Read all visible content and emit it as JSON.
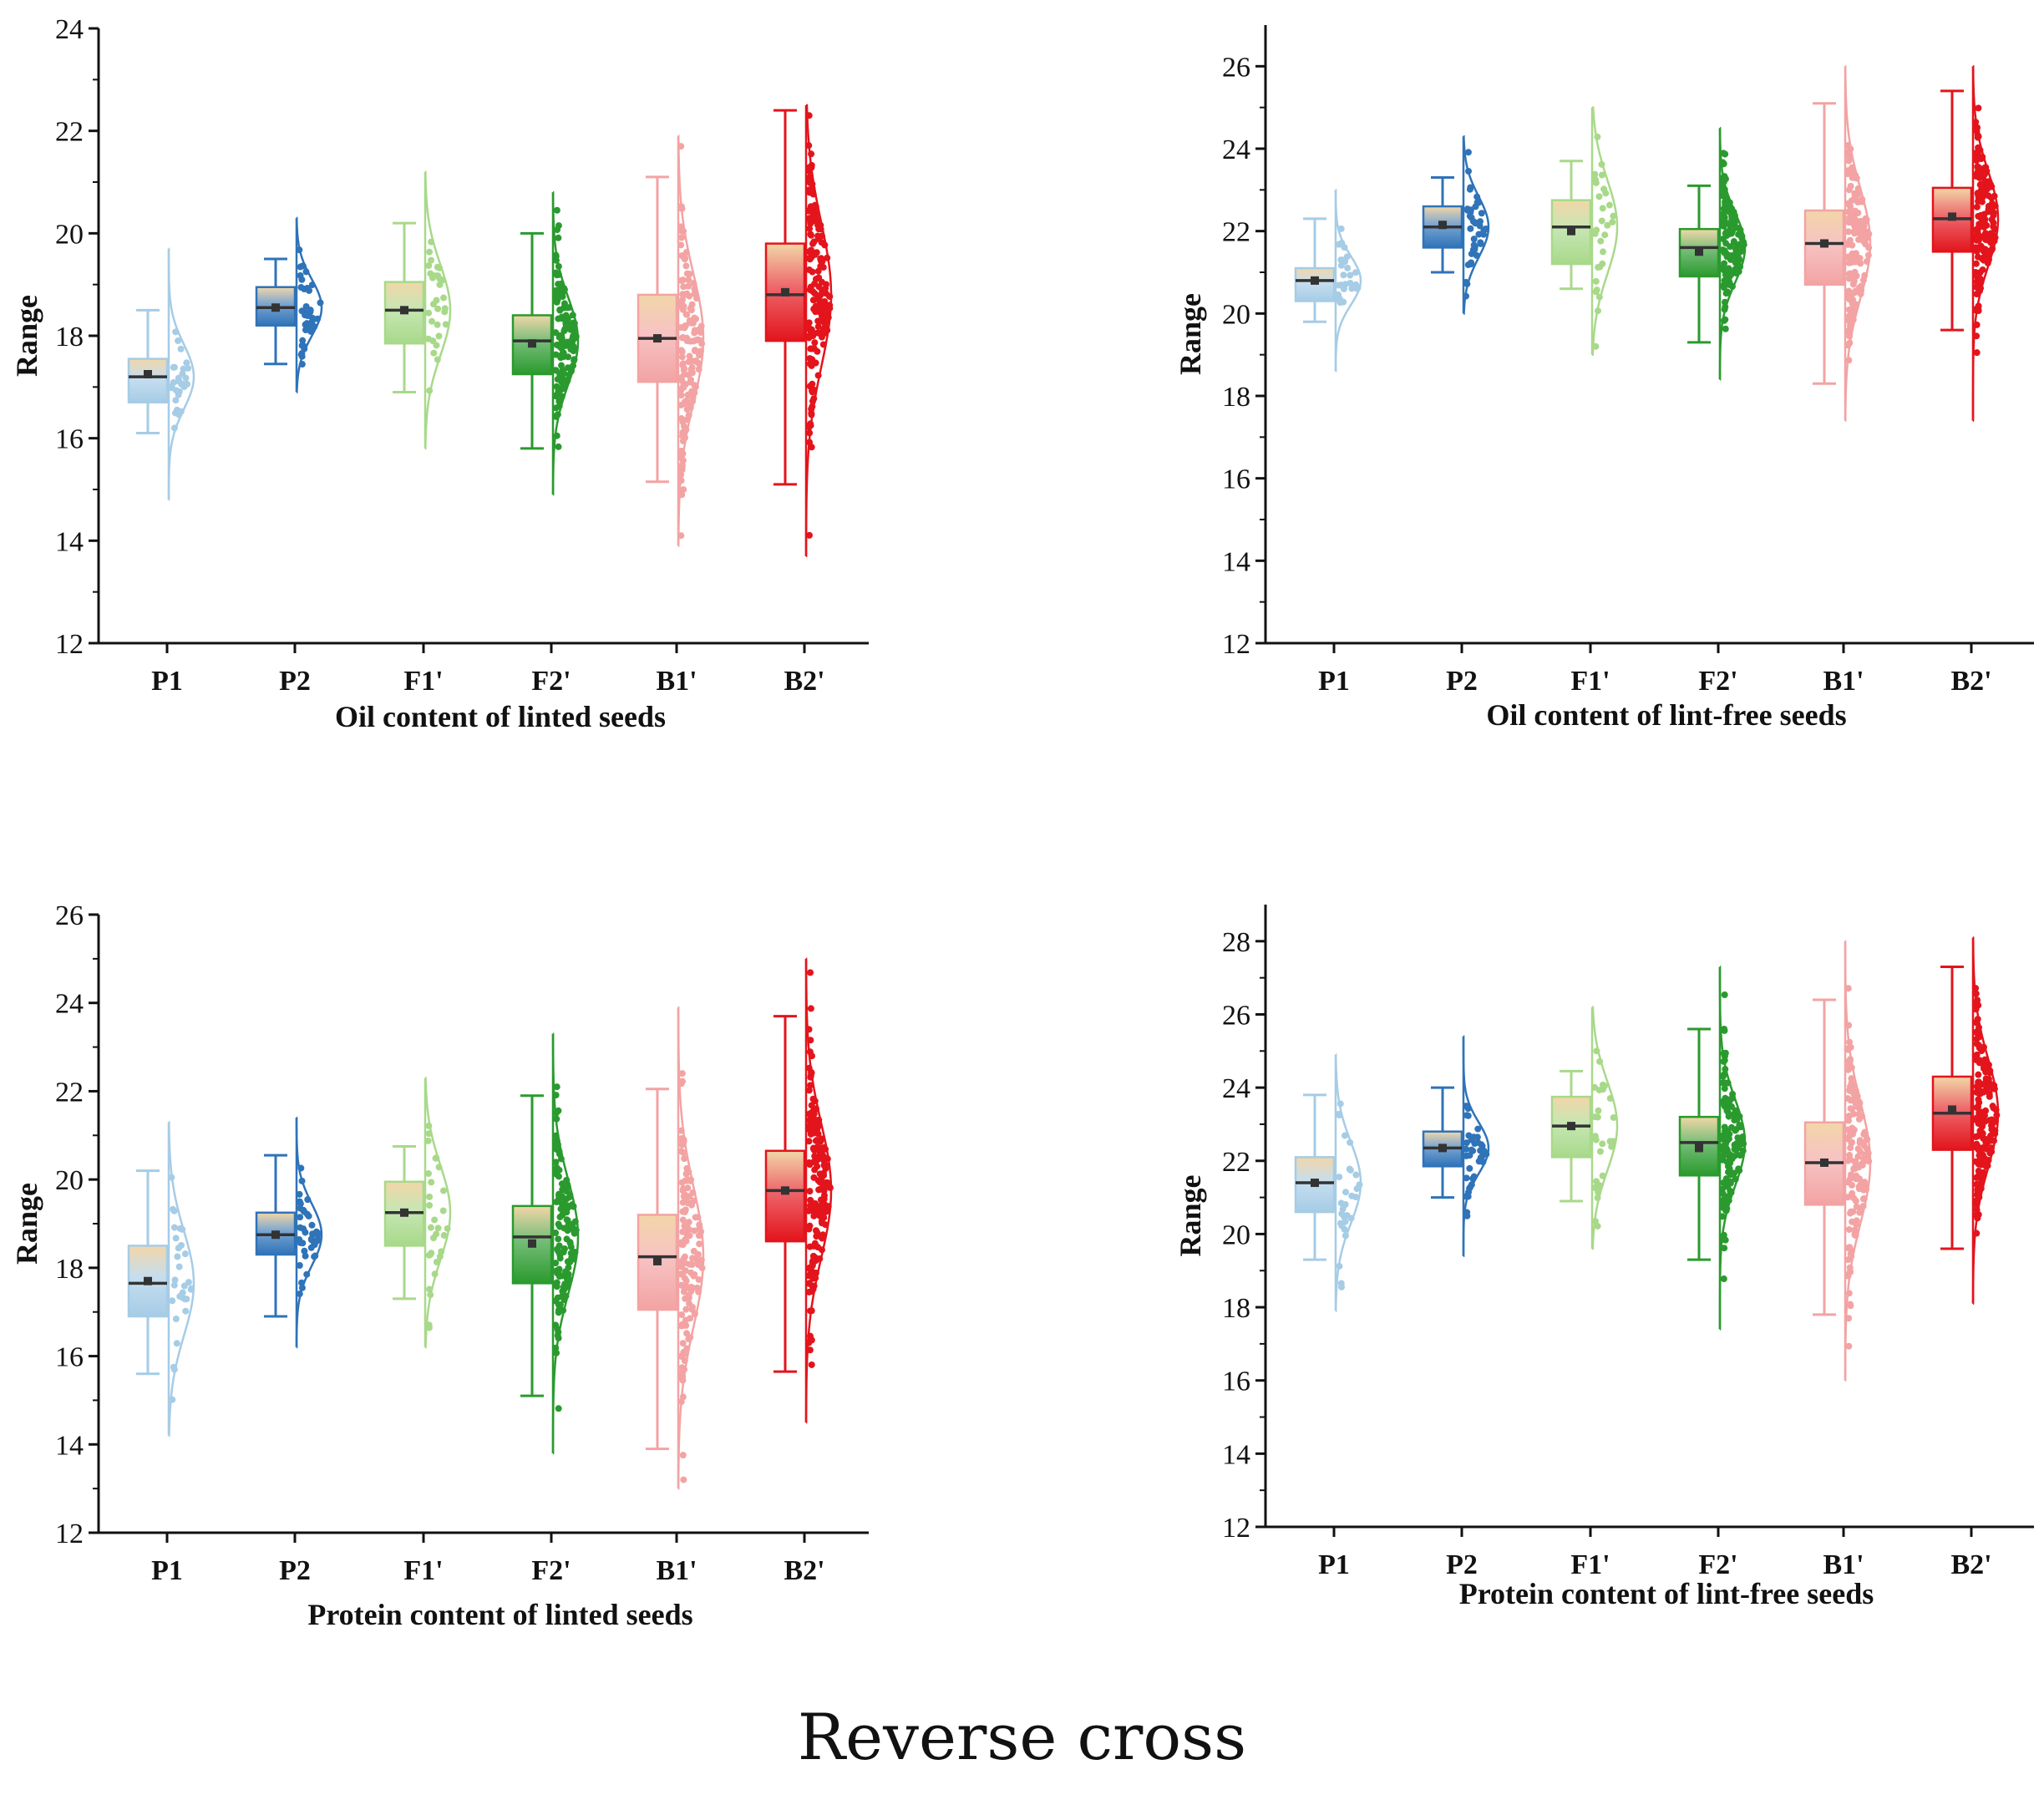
{
  "figure_caption": "Reverse cross",
  "colors": {
    "P1": "#a6cce6",
    "P2": "#2f73b8",
    "F1'": "#a8d98a",
    "F2'": "#2a9a2e",
    "B1'": "#f3a3a3",
    "B2'": "#e3141c",
    "box_top_tint": "#f2d6a8"
  },
  "chart_data": [
    {
      "type": "box-violin",
      "title": "",
      "xlabel": "Oil content of linted seeds",
      "ylabel": "Range",
      "ylim": [
        12,
        24
      ],
      "yticks": [
        12,
        14,
        16,
        18,
        20,
        22,
        24
      ],
      "categories": [
        "P1",
        "P2",
        "F1'",
        "F2'",
        "B1'",
        "B2'"
      ],
      "groups": [
        {
          "name": "P1",
          "min": 16.1,
          "q1": 16.7,
          "median": 17.2,
          "q3": 17.55,
          "max": 18.5,
          "mean": 17.25,
          "dist_low": 14.8,
          "dist_high": 19.7,
          "n": 30
        },
        {
          "name": "P2",
          "min": 17.45,
          "q1": 18.2,
          "median": 18.55,
          "q3": 18.95,
          "max": 19.5,
          "mean": 18.55,
          "dist_low": 16.9,
          "dist_high": 20.3,
          "n": 40
        },
        {
          "name": "F1'",
          "min": 16.9,
          "q1": 17.85,
          "median": 18.5,
          "q3": 19.05,
          "max": 20.2,
          "mean": 18.5,
          "dist_low": 15.8,
          "dist_high": 21.2,
          "n": 30
        },
        {
          "name": "F2'",
          "min": 15.8,
          "q1": 17.25,
          "median": 17.9,
          "q3": 18.4,
          "max": 20.0,
          "mean": 17.85,
          "dist_low": 14.9,
          "dist_high": 20.8,
          "n": 140
        },
        {
          "name": "B1'",
          "min": 15.15,
          "q1": 17.1,
          "median": 17.95,
          "q3": 18.8,
          "max": 21.1,
          "mean": 17.95,
          "dist_low": 13.9,
          "dist_high": 21.9,
          "n": 140
        },
        {
          "name": "B2'",
          "min": 15.1,
          "q1": 17.9,
          "median": 18.8,
          "q3": 19.8,
          "max": 22.4,
          "mean": 18.85,
          "dist_low": 13.7,
          "dist_high": 22.5,
          "n": 170
        }
      ]
    },
    {
      "type": "box-violin",
      "title": "",
      "xlabel": "Oil content of lint-free seeds",
      "ylabel": "Range",
      "ylim": [
        12,
        27
      ],
      "yticks": [
        12,
        14,
        16,
        18,
        20,
        22,
        24,
        26
      ],
      "categories": [
        "P1",
        "P2",
        "F1'",
        "F2'",
        "B1'",
        "B2'"
      ],
      "groups": [
        {
          "name": "P1",
          "min": 19.8,
          "q1": 20.3,
          "median": 20.8,
          "q3": 21.1,
          "max": 22.3,
          "mean": 20.8,
          "dist_low": 18.6,
          "dist_high": 23.0,
          "n": 30
        },
        {
          "name": "P2",
          "min": 21.0,
          "q1": 21.6,
          "median": 22.1,
          "q3": 22.6,
          "max": 23.3,
          "mean": 22.15,
          "dist_low": 20.0,
          "dist_high": 24.3,
          "n": 40
        },
        {
          "name": "F1'",
          "min": 20.6,
          "q1": 21.2,
          "median": 22.1,
          "q3": 22.75,
          "max": 23.7,
          "mean": 22.0,
          "dist_low": 19.0,
          "dist_high": 25.0,
          "n": 30
        },
        {
          "name": "F2'",
          "min": 19.3,
          "q1": 20.9,
          "median": 21.6,
          "q3": 22.05,
          "max": 23.1,
          "mean": 21.5,
          "dist_low": 18.4,
          "dist_high": 24.5,
          "n": 140
        },
        {
          "name": "B1'",
          "min": 18.3,
          "q1": 20.7,
          "median": 21.7,
          "q3": 22.5,
          "max": 25.1,
          "mean": 21.7,
          "dist_low": 17.4,
          "dist_high": 26.0,
          "n": 140
        },
        {
          "name": "B2'",
          "min": 19.6,
          "q1": 21.5,
          "median": 22.3,
          "q3": 23.05,
          "max": 25.4,
          "mean": 22.35,
          "dist_low": 17.4,
          "dist_high": 26.0,
          "n": 170
        }
      ]
    },
    {
      "type": "box-violin",
      "title": "",
      "xlabel": "Protein content of linted seeds",
      "ylabel": "Range",
      "ylim": [
        12,
        26
      ],
      "yticks": [
        12,
        14,
        16,
        18,
        20,
        22,
        24,
        26
      ],
      "categories": [
        "P1",
        "P2",
        "F1'",
        "F2'",
        "B1'",
        "B2'"
      ],
      "groups": [
        {
          "name": "P1",
          "min": 15.6,
          "q1": 16.9,
          "median": 17.65,
          "q3": 18.5,
          "max": 20.2,
          "mean": 17.7,
          "dist_low": 14.2,
          "dist_high": 21.3,
          "n": 30
        },
        {
          "name": "P2",
          "min": 16.9,
          "q1": 18.3,
          "median": 18.75,
          "q3": 19.25,
          "max": 20.55,
          "mean": 18.75,
          "dist_low": 16.2,
          "dist_high": 21.4,
          "n": 40
        },
        {
          "name": "F1'",
          "min": 17.3,
          "q1": 18.5,
          "median": 19.25,
          "q3": 19.95,
          "max": 20.75,
          "mean": 19.25,
          "dist_low": 16.2,
          "dist_high": 22.3,
          "n": 30
        },
        {
          "name": "F2'",
          "min": 15.1,
          "q1": 17.65,
          "median": 18.7,
          "q3": 19.4,
          "max": 21.9,
          "mean": 18.55,
          "dist_low": 13.8,
          "dist_high": 23.3,
          "n": 140
        },
        {
          "name": "B1'",
          "min": 13.9,
          "q1": 17.05,
          "median": 18.25,
          "q3": 19.2,
          "max": 22.05,
          "mean": 18.15,
          "dist_low": 13.0,
          "dist_high": 23.9,
          "n": 140
        },
        {
          "name": "B2'",
          "min": 15.65,
          "q1": 18.6,
          "median": 19.75,
          "q3": 20.65,
          "max": 23.7,
          "mean": 19.75,
          "dist_low": 14.5,
          "dist_high": 25.0,
          "n": 170
        }
      ]
    },
    {
      "type": "box-violin",
      "title": "",
      "xlabel": "Protein content of lint-free seeds",
      "ylabel": "Range",
      "ylim": [
        12,
        29
      ],
      "yticks": [
        12,
        14,
        16,
        18,
        20,
        22,
        24,
        26,
        28
      ],
      "categories": [
        "P1",
        "P2",
        "F1'",
        "F2'",
        "B1'",
        "B2'"
      ],
      "groups": [
        {
          "name": "P1",
          "min": 19.3,
          "q1": 20.6,
          "median": 21.4,
          "q3": 22.1,
          "max": 23.8,
          "mean": 21.4,
          "dist_low": 17.9,
          "dist_high": 24.9,
          "n": 30
        },
        {
          "name": "P2",
          "min": 21.0,
          "q1": 21.85,
          "median": 22.35,
          "q3": 22.8,
          "max": 24.0,
          "mean": 22.35,
          "dist_low": 19.4,
          "dist_high": 25.4,
          "n": 40
        },
        {
          "name": "F1'",
          "min": 20.9,
          "q1": 22.1,
          "median": 22.95,
          "q3": 23.75,
          "max": 24.45,
          "mean": 22.95,
          "dist_low": 19.6,
          "dist_high": 26.2,
          "n": 30
        },
        {
          "name": "F2'",
          "min": 19.3,
          "q1": 21.6,
          "median": 22.5,
          "q3": 23.2,
          "max": 25.6,
          "mean": 22.35,
          "dist_low": 17.4,
          "dist_high": 27.3,
          "n": 140
        },
        {
          "name": "B1'",
          "min": 17.8,
          "q1": 20.8,
          "median": 21.95,
          "q3": 23.05,
          "max": 26.4,
          "mean": 21.95,
          "dist_low": 16.0,
          "dist_high": 28.0,
          "n": 140
        },
        {
          "name": "B2'",
          "min": 19.6,
          "q1": 22.3,
          "median": 23.3,
          "q3": 24.3,
          "max": 27.3,
          "mean": 23.4,
          "dist_low": 18.1,
          "dist_high": 28.1,
          "n": 170
        }
      ]
    }
  ]
}
